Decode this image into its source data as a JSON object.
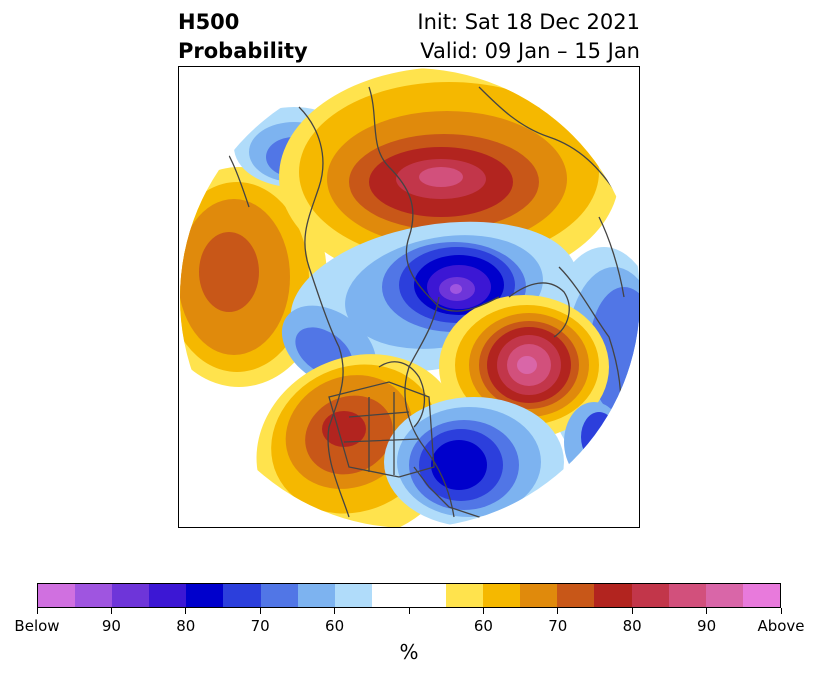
{
  "title": {
    "left_line1": "H500",
    "left_line2": "Probability",
    "right_line1": "Init: Sat 18 Dec 2021",
    "right_line2": "Valid: 09 Jan – 15 Jan"
  },
  "colorbar": {
    "colors": [
      "#d070e0",
      "#9f55e0",
      "#6e35d9",
      "#3c17d4",
      "#0000cc",
      "#2c3fdc",
      "#5176e6",
      "#7db3f0",
      "#b0dcfa",
      "#ffffff",
      "#ffffff",
      "#ffe34d",
      "#f5b800",
      "#e08a0c",
      "#c85718",
      "#b2241f",
      "#c2364a",
      "#d2507c",
      "#d966a8",
      "#e87adc"
    ],
    "tick_labels": [
      "Below",
      "90",
      "80",
      "70",
      "60",
      "60",
      "70",
      "80",
      "90",
      "Above"
    ],
    "unit": "%"
  },
  "map": {
    "description_regions": [
      {
        "name": "alaska-pacific-above",
        "color": "#e08a0c"
      },
      {
        "name": "western-us-above",
        "color": "#c85718"
      },
      {
        "name": "canada-below",
        "color": "#3c17d4"
      },
      {
        "name": "eastern-us-below",
        "color": "#0000cc"
      },
      {
        "name": "greenland-atlantic-above",
        "color": "#d966a8"
      },
      {
        "name": "siberia-above",
        "color": "#c2364a"
      },
      {
        "name": "east-asia-below",
        "color": "#5176e6"
      }
    ]
  }
}
